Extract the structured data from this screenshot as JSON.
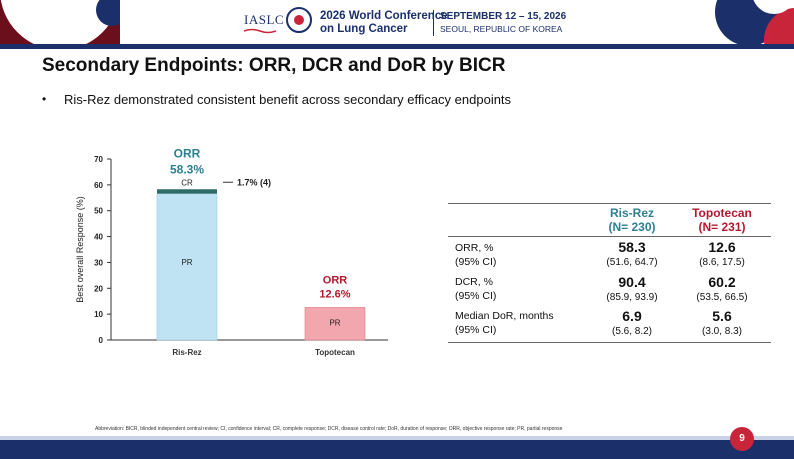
{
  "header": {
    "org": "IASLC",
    "conference": [
      "2026 World Conference",
      "on Lung Cancer"
    ],
    "dates": "SEPTEMBER 12 – 15, 2026",
    "location": "SEOUL, REPUBLIC OF KOREA"
  },
  "slide": {
    "title": "Secondary Endpoints: ORR, DCR and DoR by BICR",
    "bullet": "Ris-Rez demonstrated consistent benefit across secondary efficacy endpoints",
    "page_number": "9",
    "abbreviation": "Abbreviation: BICR, blinded independent central review; CI, confidence interval; CR, complete response; DCR, disease control rate; DoR, duration of response; ORR, objective response rate; PR, partial response"
  },
  "colors": {
    "navy": "#1b2f6b",
    "ris_accent": "#2d7f91",
    "topo_accent": "#b5172e",
    "ris_pr": "#bfe3f3",
    "ris_cr": "#2d6b66",
    "topo_pr": "#f2a6ad"
  },
  "chart_data": {
    "type": "bar",
    "categories": [
      "Ris-Rez",
      "Topotecan"
    ],
    "ylabel": "Best overall Response (%)",
    "ylim": [
      0,
      70
    ],
    "yticks": [
      0,
      10,
      20,
      30,
      40,
      50,
      60,
      70
    ],
    "series": [
      {
        "name": "PR",
        "values": [
          56.6,
          12.6
        ]
      },
      {
        "name": "CR",
        "values": [
          1.7,
          0
        ]
      }
    ],
    "annotations": [
      {
        "category": "Ris-Rez",
        "label": "ORR",
        "value_text": "58.3%"
      },
      {
        "category": "Topotecan",
        "label": "ORR",
        "value_text": "12.6%"
      },
      {
        "category": "Ris-Rez",
        "label": "CR",
        "text": "1.7% (4)"
      }
    ]
  },
  "table": {
    "columns": [
      {
        "name": "Ris-Rez",
        "n": "(N= 230)"
      },
      {
        "name": "Topotecan",
        "n": "(N= 231)"
      }
    ],
    "rows": [
      {
        "label": "ORR, %",
        "sublabel": "(95% CI)",
        "values": [
          "58.3",
          "12.6"
        ],
        "cis": [
          "(51.6, 64.7)",
          "(8.6, 17.5)"
        ]
      },
      {
        "label": "DCR, %",
        "sublabel": "(95% CI)",
        "values": [
          "90.4",
          "60.2"
        ],
        "cis": [
          "(85.9, 93.9)",
          "(53.5, 66.5)"
        ]
      },
      {
        "label": "Median DoR, months",
        "sublabel": "(95% CI)",
        "values": [
          "6.9",
          "5.6"
        ],
        "cis": [
          "(5.6, 8.2)",
          "(3.0, 8.3)"
        ]
      }
    ]
  }
}
